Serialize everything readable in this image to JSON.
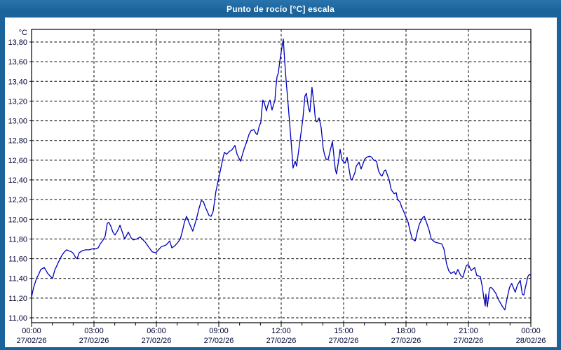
{
  "window": {
    "title": "Punto de rocío [°C] escala"
  },
  "chart_data": {
    "type": "line",
    "title": "Punto de rocío [°C] escala",
    "y_unit_label": "°C",
    "ylim": [
      11.0,
      13.8
    ],
    "ytick_step": 0.2,
    "ytick_labels": [
      "11,00",
      "11,20",
      "11,40",
      "11,60",
      "11,80",
      "12,00",
      "12,20",
      "12,40",
      "12,60",
      "12,80",
      "13,00",
      "13,20",
      "13,40",
      "13,60",
      "13,80"
    ],
    "x_hours_range": [
      0,
      24
    ],
    "minor_xtick_every_hours": 1,
    "grid": true,
    "legend_position": "none",
    "line_color": "#0000bb",
    "grid_color": "#000000",
    "label_color": "#000433",
    "titlebar_color": "#1b639b",
    "xticks": [
      {
        "hour": 0,
        "time": "00:00",
        "date": "27/02/26"
      },
      {
        "hour": 3,
        "time": "03:00",
        "date": "27/02/26"
      },
      {
        "hour": 6,
        "time": "06:00",
        "date": "27/02/26"
      },
      {
        "hour": 9,
        "time": "09:00",
        "date": "27/02/26"
      },
      {
        "hour": 12,
        "time": "12:00",
        "date": "27/02/26"
      },
      {
        "hour": 15,
        "time": "15:00",
        "date": "27/02/26"
      },
      {
        "hour": 18,
        "time": "18:00",
        "date": "27/02/26"
      },
      {
        "hour": 21,
        "time": "21:00",
        "date": "27/02/26"
      },
      {
        "hour": 24,
        "time": "00:00",
        "date": "28/02/26"
      }
    ],
    "series": [
      {
        "name": "Punto de rocío [°C]",
        "points": [
          [
            0,
            11.21
          ],
          [
            0.1,
            11.31
          ],
          [
            0.24,
            11.4
          ],
          [
            0.34,
            11.44
          ],
          [
            0.44,
            11.49
          ],
          [
            0.61,
            11.51
          ],
          [
            0.78,
            11.45
          ],
          [
            0.91,
            11.42
          ],
          [
            1.01,
            11.4
          ],
          [
            1.11,
            11.48
          ],
          [
            1.28,
            11.56
          ],
          [
            1.45,
            11.63
          ],
          [
            1.58,
            11.67
          ],
          [
            1.69,
            11.69
          ],
          [
            1.79,
            11.68
          ],
          [
            1.92,
            11.67
          ],
          [
            2.02,
            11.65
          ],
          [
            2.12,
            11.61
          ],
          [
            2.19,
            11.6
          ],
          [
            2.29,
            11.66
          ],
          [
            2.43,
            11.68
          ],
          [
            2.6,
            11.69
          ],
          [
            2.76,
            11.69
          ],
          [
            2.93,
            11.7
          ],
          [
            3.1,
            11.7
          ],
          [
            3.2,
            11.71
          ],
          [
            3.3,
            11.75
          ],
          [
            3.44,
            11.79
          ],
          [
            3.54,
            11.83
          ],
          [
            3.64,
            11.96
          ],
          [
            3.71,
            11.97
          ],
          [
            3.81,
            11.93
          ],
          [
            3.91,
            11.87
          ],
          [
            4.01,
            11.84
          ],
          [
            4.15,
            11.89
          ],
          [
            4.25,
            11.94
          ],
          [
            4.38,
            11.86
          ],
          [
            4.48,
            11.8
          ],
          [
            4.65,
            11.87
          ],
          [
            4.79,
            11.81
          ],
          [
            4.89,
            11.79
          ],
          [
            5.06,
            11.8
          ],
          [
            5.22,
            11.82
          ],
          [
            5.46,
            11.77
          ],
          [
            5.66,
            11.71
          ],
          [
            5.8,
            11.67
          ],
          [
            5.97,
            11.66
          ],
          [
            6.1,
            11.69
          ],
          [
            6.23,
            11.72
          ],
          [
            6.47,
            11.74
          ],
          [
            6.64,
            11.78
          ],
          [
            6.74,
            11.71
          ],
          [
            6.88,
            11.73
          ],
          [
            7.01,
            11.76
          ],
          [
            7.15,
            11.8
          ],
          [
            7.25,
            11.88
          ],
          [
            7.35,
            11.97
          ],
          [
            7.45,
            12.03
          ],
          [
            7.58,
            11.96
          ],
          [
            7.75,
            11.88
          ],
          [
            7.92,
            12.0
          ],
          [
            8.05,
            12.11
          ],
          [
            8.16,
            12.19
          ],
          [
            8.26,
            12.18
          ],
          [
            8.36,
            12.12
          ],
          [
            8.53,
            12.04
          ],
          [
            8.63,
            12.03
          ],
          [
            8.73,
            12.08
          ],
          [
            8.86,
            12.28
          ],
          [
            8.97,
            12.39
          ],
          [
            9.1,
            12.52
          ],
          [
            9.2,
            12.62
          ],
          [
            9.27,
            12.68
          ],
          [
            9.37,
            12.66
          ],
          [
            9.51,
            12.69
          ],
          [
            9.61,
            12.7
          ],
          [
            9.71,
            12.73
          ],
          [
            9.78,
            12.75
          ],
          [
            9.88,
            12.66
          ],
          [
            10.04,
            12.59
          ],
          [
            10.21,
            12.71
          ],
          [
            10.35,
            12.79
          ],
          [
            10.45,
            12.86
          ],
          [
            10.55,
            12.9
          ],
          [
            10.69,
            12.91
          ],
          [
            10.79,
            12.87
          ],
          [
            10.85,
            12.86
          ],
          [
            10.95,
            12.95
          ],
          [
            11.02,
            12.98
          ],
          [
            11.06,
            13.09
          ],
          [
            11.12,
            13.21
          ],
          [
            11.19,
            13.18
          ],
          [
            11.29,
            13.1
          ],
          [
            11.39,
            13.18
          ],
          [
            11.46,
            13.21
          ],
          [
            11.56,
            13.11
          ],
          [
            11.7,
            13.21
          ],
          [
            11.73,
            13.31
          ],
          [
            11.8,
            13.45
          ],
          [
            11.86,
            13.48
          ],
          [
            11.93,
            13.6
          ],
          [
            12.0,
            13.7
          ],
          [
            12.1,
            13.83
          ],
          [
            12.17,
            13.6
          ],
          [
            12.24,
            13.4
          ],
          [
            12.3,
            13.25
          ],
          [
            12.4,
            12.99
          ],
          [
            12.51,
            12.7
          ],
          [
            12.57,
            12.52
          ],
          [
            12.67,
            12.59
          ],
          [
            12.74,
            12.54
          ],
          [
            12.84,
            12.7
          ],
          [
            12.91,
            12.81
          ],
          [
            13.04,
            13.02
          ],
          [
            13.14,
            13.25
          ],
          [
            13.21,
            13.28
          ],
          [
            13.31,
            13.13
          ],
          [
            13.38,
            13.09
          ],
          [
            13.48,
            13.34
          ],
          [
            13.58,
            13.16
          ],
          [
            13.65,
            13.0
          ],
          [
            13.72,
            12.99
          ],
          [
            13.82,
            13.03
          ],
          [
            13.92,
            12.93
          ],
          [
            14.02,
            12.72
          ],
          [
            14.09,
            12.65
          ],
          [
            14.16,
            12.61
          ],
          [
            14.26,
            12.61
          ],
          [
            14.36,
            12.7
          ],
          [
            14.46,
            12.79
          ],
          [
            14.6,
            12.51
          ],
          [
            14.66,
            12.46
          ],
          [
            14.76,
            12.6
          ],
          [
            14.83,
            12.71
          ],
          [
            14.93,
            12.6
          ],
          [
            15.07,
            12.57
          ],
          [
            15.17,
            12.63
          ],
          [
            15.34,
            12.41
          ],
          [
            15.4,
            12.4
          ],
          [
            15.54,
            12.47
          ],
          [
            15.61,
            12.54
          ],
          [
            15.74,
            12.58
          ],
          [
            15.84,
            12.51
          ],
          [
            16.01,
            12.61
          ],
          [
            16.11,
            12.63
          ],
          [
            16.25,
            12.64
          ],
          [
            16.35,
            12.63
          ],
          [
            16.45,
            12.6
          ],
          [
            16.58,
            12.59
          ],
          [
            16.68,
            12.49
          ],
          [
            16.78,
            12.45
          ],
          [
            16.85,
            12.44
          ],
          [
            16.95,
            12.49
          ],
          [
            17.02,
            12.5
          ],
          [
            17.19,
            12.4
          ],
          [
            17.29,
            12.3
          ],
          [
            17.43,
            12.26
          ],
          [
            17.53,
            12.27
          ],
          [
            17.59,
            12.2
          ],
          [
            17.7,
            12.18
          ],
          [
            17.8,
            12.12
          ],
          [
            17.93,
            12.06
          ],
          [
            18.0,
            12.02
          ],
          [
            18.1,
            11.97
          ],
          [
            18.2,
            11.88
          ],
          [
            18.3,
            11.8
          ],
          [
            18.44,
            11.78
          ],
          [
            18.54,
            11.87
          ],
          [
            18.64,
            11.95
          ],
          [
            18.81,
            12.02
          ],
          [
            18.88,
            12.03
          ],
          [
            18.98,
            11.97
          ],
          [
            19.11,
            11.89
          ],
          [
            19.21,
            11.8
          ],
          [
            19.38,
            11.77
          ],
          [
            19.55,
            11.76
          ],
          [
            19.72,
            11.75
          ],
          [
            19.82,
            11.7
          ],
          [
            19.95,
            11.55
          ],
          [
            20.05,
            11.48
          ],
          [
            20.16,
            11.45
          ],
          [
            20.32,
            11.47
          ],
          [
            20.39,
            11.44
          ],
          [
            20.49,
            11.49
          ],
          [
            20.63,
            11.43
          ],
          [
            20.73,
            11.41
          ],
          [
            20.9,
            11.53
          ],
          [
            21.0,
            11.54
          ],
          [
            21.13,
            11.48
          ],
          [
            21.3,
            11.51
          ],
          [
            21.4,
            11.43
          ],
          [
            21.57,
            11.42
          ],
          [
            21.67,
            11.31
          ],
          [
            21.74,
            11.2
          ],
          [
            21.81,
            11.12
          ],
          [
            21.84,
            11.24
          ],
          [
            21.91,
            11.11
          ],
          [
            22.01,
            11.3
          ],
          [
            22.08,
            11.31
          ],
          [
            22.18,
            11.29
          ],
          [
            22.31,
            11.25
          ],
          [
            22.41,
            11.2
          ],
          [
            22.51,
            11.16
          ],
          [
            22.65,
            11.11
          ],
          [
            22.75,
            11.08
          ],
          [
            22.85,
            11.19
          ],
          [
            22.98,
            11.31
          ],
          [
            23.08,
            11.35
          ],
          [
            23.15,
            11.31
          ],
          [
            23.25,
            11.26
          ],
          [
            23.35,
            11.33
          ],
          [
            23.49,
            11.38
          ],
          [
            23.59,
            11.24
          ],
          [
            23.66,
            11.23
          ],
          [
            23.76,
            11.33
          ],
          [
            23.86,
            11.42
          ],
          [
            23.93,
            11.44
          ],
          [
            24.0,
            11.43
          ]
        ]
      }
    ]
  }
}
